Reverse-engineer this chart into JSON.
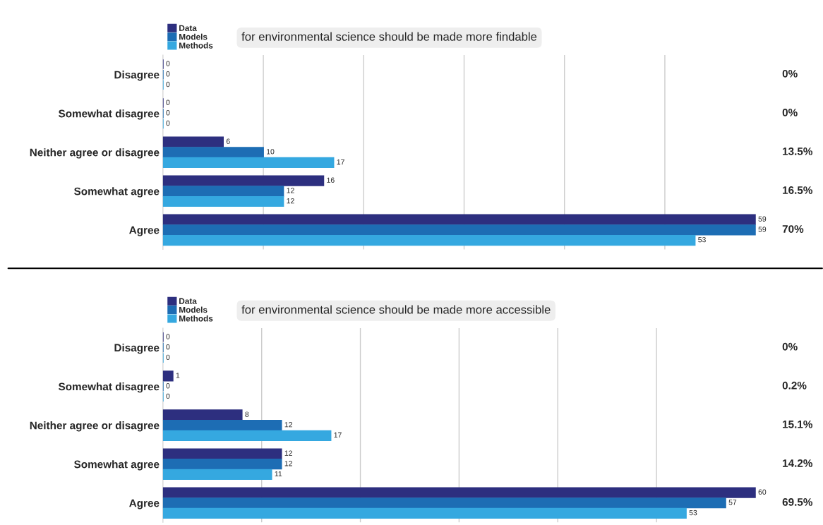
{
  "chart_data": [
    {
      "type": "bar",
      "orientation": "horizontal",
      "title": "for environmental science should be made more findable",
      "categories": [
        "Disagree",
        "Somewhat disagree",
        "Neither agree or disagree",
        "Somewhat agree",
        "Agree"
      ],
      "series": [
        {
          "name": "Data",
          "color": "#2d2f7f",
          "values": [
            0,
            0,
            6,
            16,
            59
          ]
        },
        {
          "name": "Models",
          "color": "#1d6db4",
          "values": [
            0,
            0,
            10,
            12,
            59
          ]
        },
        {
          "name": "Methods",
          "color": "#35a8e0",
          "values": [
            0,
            0,
            17,
            12,
            53
          ]
        }
      ],
      "xticks": [
        {
          "value": 10,
          "label": null
        },
        {
          "value": 20,
          "label": null
        },
        {
          "value": 30,
          "label": null
        },
        {
          "value": 40,
          "label": null
        },
        {
          "value": 50,
          "label": null
        }
      ],
      "grid": "x",
      "legend": "top left",
      "data_labels": true,
      "tick_labels": "y",
      "annotations": [
        "0%",
        "0%",
        "13.5%",
        "16.5%",
        "70%"
      ]
    },
    {
      "type": "bar",
      "orientation": "horizontal",
      "title": "for environmental science should be made more accessible",
      "categories": [
        "Disagree",
        "Somewhat disagree",
        "Neither agree or disagree",
        "Somewhat agree",
        "Agree"
      ],
      "series": [
        {
          "name": "Data",
          "color": "#2d2f7f",
          "values": [
            0,
            1,
            8,
            12,
            60
          ]
        },
        {
          "name": "Models",
          "color": "#1d6db4",
          "values": [
            0,
            0,
            12,
            12,
            57
          ]
        },
        {
          "name": "Methods",
          "color": "#35a8e0",
          "values": [
            0,
            0,
            17,
            11,
            53
          ]
        }
      ],
      "xticks": [
        {
          "value": 10,
          "label": null
        },
        {
          "value": 20,
          "label": null
        },
        {
          "value": 30,
          "label": null
        },
        {
          "value": 40,
          "label": null
        },
        {
          "value": 50,
          "label": null
        }
      ],
      "grid": "x",
      "legend": "top left",
      "data_labels": true,
      "tick_labels": "y",
      "annotations": [
        "0%",
        "0.2%",
        "15.1%",
        "14.2%",
        "69.5%"
      ]
    }
  ]
}
